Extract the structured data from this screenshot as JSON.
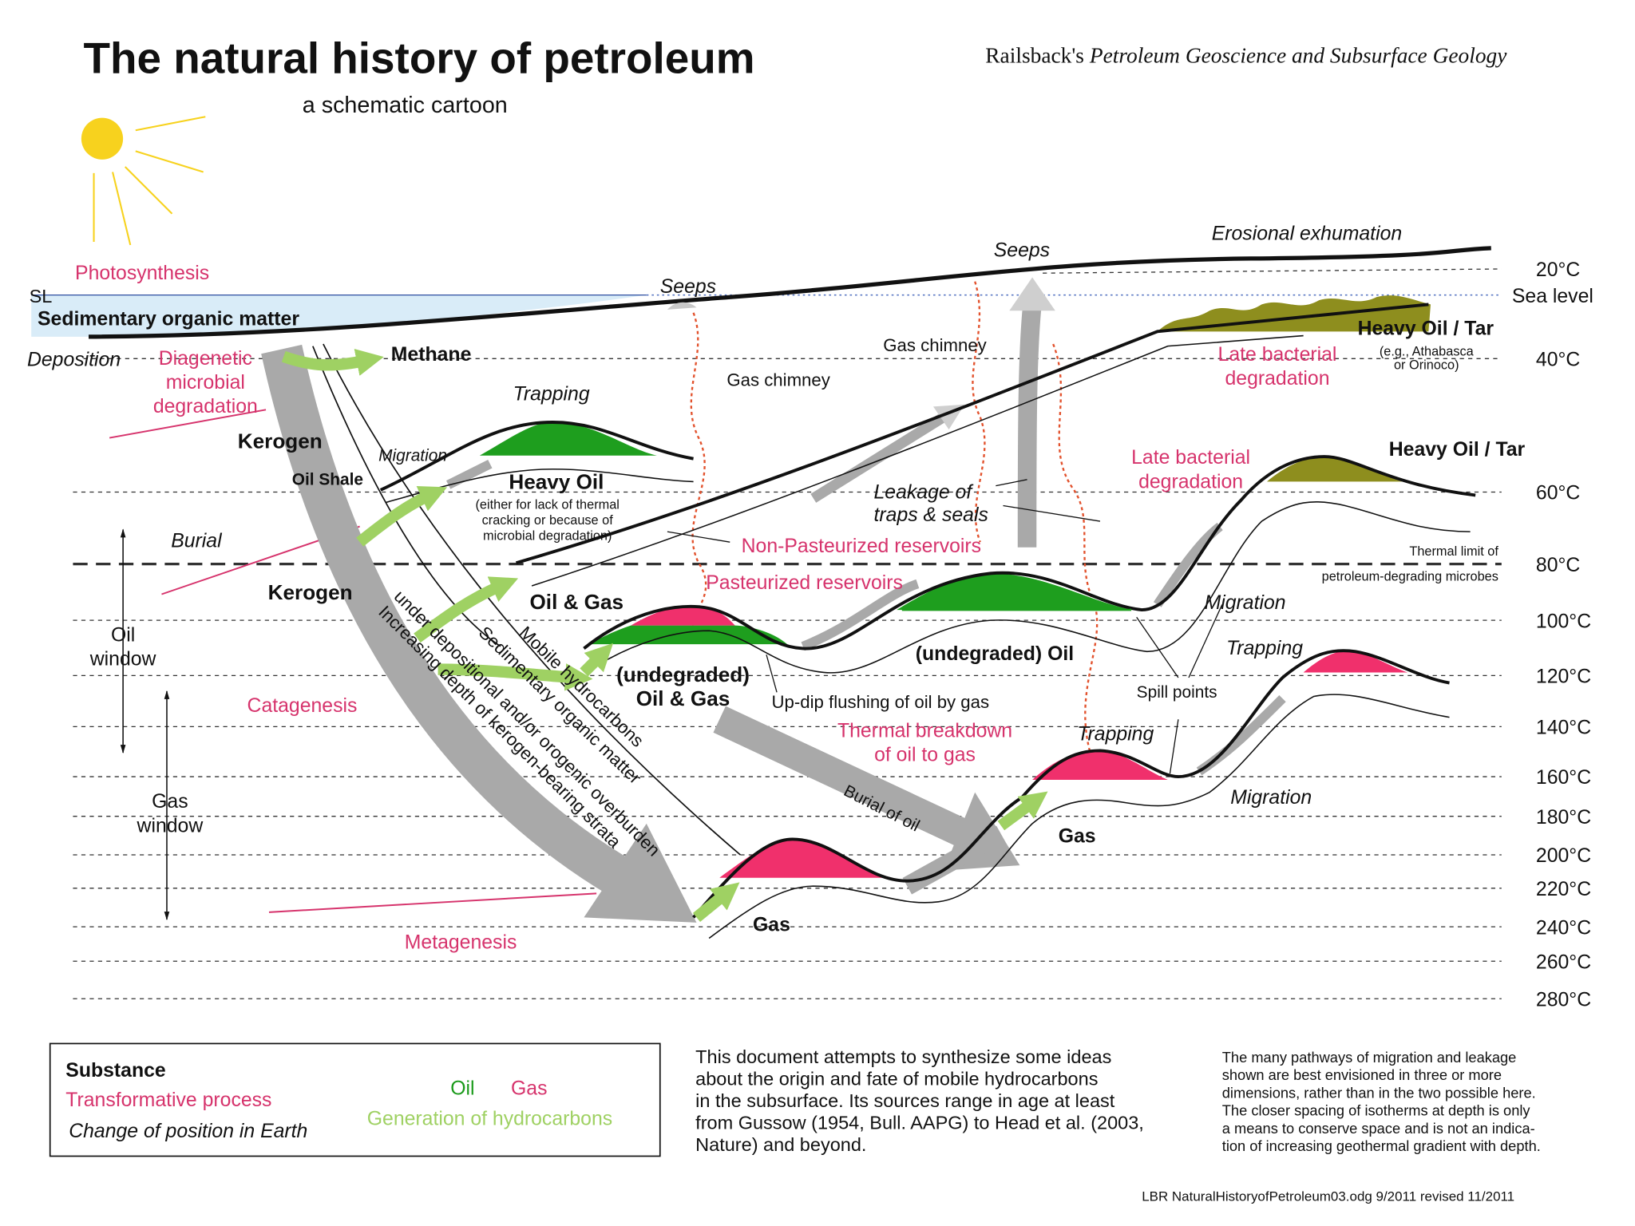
{
  "header": {
    "title": "The natural history of petroleum",
    "subtitle": "a schematic cartoon",
    "source": {
      "author": "Railsback's",
      "book": "Petroleum Geoscience and Subsurface Geology"
    }
  },
  "scale": {
    "sea_level_mark": "SL",
    "sea_level": "Sea level",
    "isotherms": [
      "20°C",
      "40°C",
      "60°C",
      "80°C",
      "100°C",
      "120°C",
      "140°C",
      "160°C",
      "180°C",
      "200°C",
      "220°C",
      "240°C",
      "260°C",
      "280°C"
    ],
    "thermal_limit": [
      "Thermal limit of",
      "petroleum-degrading microbes"
    ]
  },
  "labels": {
    "photosynthesis": "Photosynthesis",
    "sedimentary_organic_matter": "Sedimentary organic matter",
    "deposition": "Deposition",
    "diagenetic": [
      "Diagenetic",
      "microbial",
      "degradation"
    ],
    "methane": "Methane",
    "kerogen_upper": "Kerogen",
    "oil_shale": "Oil Shale",
    "migration_upper": "Migration",
    "trapping_upper": "Trapping",
    "heavy_oil": "Heavy Oil",
    "heavy_oil_note": [
      "(either for lack of thermal",
      "cracking or because of",
      "microbial degradation)"
    ],
    "burial": "Burial",
    "kerogen_lower": "Kerogen",
    "oil_and_gas": "Oil & Gas",
    "oil_window": [
      "Oil",
      "window"
    ],
    "gas_window": [
      "Gas",
      "window"
    ],
    "catagenesis": "Catagenesis",
    "metagenesis": "Metagenesis",
    "increasing_depth": [
      "Increasing depth of kerogen-bearing strata",
      "under depositional and/or orogenic overburden"
    ],
    "sedimentary_organic_matter_path": "Sedimentary organic matter",
    "mobile_hydrocarbons": "Mobile hydrocarbons",
    "undegraded_oil_gas": [
      "(undegraded)",
      "Oil & Gas"
    ],
    "up_dip_flushing": "Up-dip flushing of oil by gas",
    "thermal_breakdown": [
      "Thermal breakdown",
      "of oil to gas"
    ],
    "burial_of_oil": "Burial of oil",
    "gas_deep": "Gas",
    "gas_middle": "Gas",
    "seeps_left": "Seeps",
    "seeps_right": "Seeps",
    "gas_chimney_left": "Gas chimney",
    "gas_chimney_right": "Gas chimney",
    "erosional_exhumation": "Erosional exhumation",
    "heavy_oil_tar_upper": "Heavy Oil / Tar",
    "tar_examples": [
      "(e.g., Athabasca",
      "or Orinoco)"
    ],
    "late_bacterial_upper": [
      "Late bacterial",
      "degradation"
    ],
    "late_bacterial_lower": [
      "Late bacterial",
      "degradation"
    ],
    "heavy_oil_tar_lower": "Heavy Oil / Tar",
    "leakage": [
      "Leakage of",
      "traps & seals"
    ],
    "non_pasteurized": "Non-Pasteurized reservoirs",
    "pasteurized": "Pasteurized reservoirs",
    "migration_right": "Migration",
    "undegraded_oil": "(undegraded) Oil",
    "trapping_right": "Trapping",
    "spill_points": "Spill points",
    "trapping_middle": "Trapping",
    "migration_lower": "Migration"
  },
  "legend": {
    "substance": "Substance",
    "process": "Transformative process",
    "position": "Change of position in Earth",
    "oil": "Oil",
    "gas": "Gas",
    "generation": "Generation of hydrocarbons"
  },
  "notes": {
    "left": [
      "This document attempts to synthesize some ideas",
      "about the origin and fate of mobile hydrocarbons",
      "in the subsurface.  Its sources range in age at least",
      "from Gussow (1954, Bull. AAPG) to Head et al. (2003,",
      "Nature) and beyond."
    ],
    "right": [
      "The many pathways of migration and leakage",
      "shown are best envisioned in three or more",
      "dimensions, rather than in the two possible here.",
      "The closer spacing of isotherms at depth is only",
      "a means to conserve space and is not an indica-",
      "tion of increasing geothermal gradient with depth."
    ]
  },
  "footer": "LBR  NaturalHistoryofPetroleum03.odg   9/2011 revised 11/2011"
}
